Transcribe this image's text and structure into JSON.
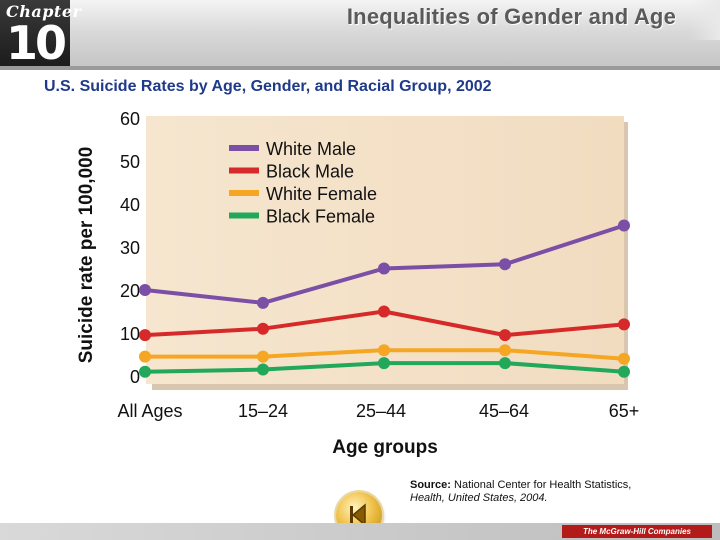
{
  "header": {
    "chapter_word": "Chapter",
    "chapter_number": "10",
    "title": "Inequalities of Gender and Age"
  },
  "slide_title": "U.S. Suicide Rates by Age, Gender, and Racial Group, 2002",
  "chart_data": {
    "type": "line",
    "title": "U.S. Suicide Rates by Age, Gender, and Racial Group, 2002",
    "xlabel": "Age groups",
    "ylabel": "Suicide rate per 100,000",
    "categories": [
      "All Ages",
      "15–24",
      "25–44",
      "45–64",
      "65+"
    ],
    "ylim": [
      0,
      60
    ],
    "yticks": [
      0,
      10,
      20,
      30,
      40,
      50,
      60
    ],
    "grid": false,
    "legend_position": "top-left",
    "series": [
      {
        "name": "White Male",
        "color": "#7b4fa6",
        "values": [
          20,
          17,
          25,
          26,
          35
        ]
      },
      {
        "name": "Black Male",
        "color": "#d62a2a",
        "values": [
          9.5,
          11,
          15,
          9.5,
          12
        ]
      },
      {
        "name": "White Female",
        "color": "#f5a623",
        "values": [
          4.5,
          4.5,
          6,
          6,
          4
        ]
      },
      {
        "name": "Black Female",
        "color": "#22a85a",
        "values": [
          1,
          1.5,
          3,
          3,
          1
        ]
      }
    ]
  },
  "source": {
    "label": "Source:",
    "text": "National Center for Health Statistics,",
    "publication": "Health, United States, 2004."
  },
  "navigation": {
    "back_icon": "back-arrow-icon"
  },
  "footer": {
    "publisher": "The McGraw-Hill Companies"
  }
}
